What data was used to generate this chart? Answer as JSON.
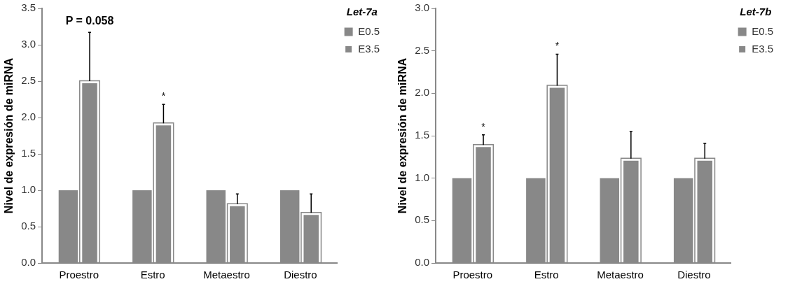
{
  "chart_data": [
    {
      "type": "bar",
      "legend_title": "Let-7a",
      "ylabel": "Nivel de expresión de miRNA",
      "categories": [
        "Proestro",
        "Estro",
        "Metaestro",
        "Diestro"
      ],
      "series": [
        {
          "name": "E0.5",
          "color": "#888888",
          "values": [
            1.0,
            1.0,
            1.0,
            1.0
          ]
        },
        {
          "name": "E3.5",
          "color": "#888888",
          "values": [
            2.5,
            1.92,
            0.81,
            0.69
          ],
          "errors": [
            [
              2.5,
              3.17
            ],
            [
              1.92,
              2.18
            ],
            [
              0.81,
              0.95
            ],
            [
              0.69,
              0.95
            ]
          ]
        }
      ],
      "ylim": [
        0,
        3.5
      ],
      "yticks": [
        {
          "value": 0,
          "label": "0.0"
        },
        {
          "value": 0.5,
          "label": "0.5"
        },
        {
          "value": 1,
          "label": "1.0"
        },
        {
          "value": 1.5,
          "label": "1.5"
        },
        {
          "value": 2,
          "label": "2.0"
        },
        {
          "value": 2.5,
          "label": "2.5"
        },
        {
          "value": 3,
          "label": "3.0"
        },
        {
          "value": 3.5,
          "label": "3.5"
        }
      ],
      "grid": false,
      "legend": "top right",
      "annotations": [
        "P = 0.058",
        "*"
      ]
    },
    {
      "type": "bar",
      "legend_title": "Let-7b",
      "ylabel": "Nivel de expresión de miRNA",
      "categories": [
        "Proestro",
        "Estro",
        "Metaestro",
        "Diestro"
      ],
      "series": [
        {
          "name": "E0.5",
          "color": "#888888",
          "values": [
            1.0,
            1.0,
            1.0,
            1.0
          ]
        },
        {
          "name": "E3.5",
          "color": "#888888",
          "values": [
            1.39,
            2.09,
            1.23,
            1.23
          ],
          "errors": [
            [
              1.39,
              1.51
            ],
            [
              2.09,
              2.46
            ],
            [
              1.23,
              1.55
            ],
            [
              1.23,
              1.41
            ]
          ]
        }
      ],
      "ylim": [
        0,
        3
      ],
      "yticks": [
        {
          "value": 0,
          "label": "0.0"
        },
        {
          "value": 0.5,
          "label": "0.5"
        },
        {
          "value": 1,
          "label": "1.0"
        },
        {
          "value": 1.5,
          "label": "1.5"
        },
        {
          "value": 2,
          "label": "2.0"
        },
        {
          "value": 2.5,
          "label": "2.5"
        },
        {
          "value": 3,
          "label": "3.0"
        }
      ],
      "grid": false,
      "legend": "top right",
      "annotations": [
        "*",
        "*"
      ]
    }
  ]
}
